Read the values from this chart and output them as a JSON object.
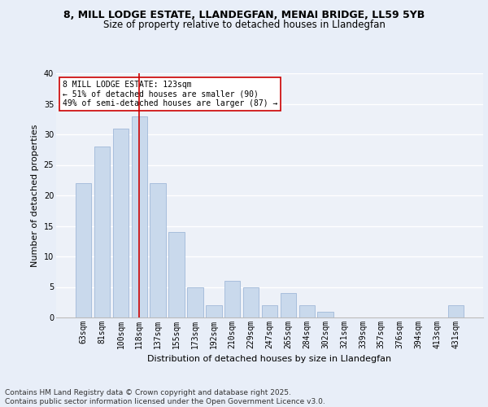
{
  "title1": "8, MILL LODGE ESTATE, LLANDEGFAN, MENAI BRIDGE, LL59 5YB",
  "title2": "Size of property relative to detached houses in Llandegfan",
  "xlabel": "Distribution of detached houses by size in Llandegfan",
  "ylabel": "Number of detached properties",
  "categories": [
    "63sqm",
    "81sqm",
    "100sqm",
    "118sqm",
    "137sqm",
    "155sqm",
    "173sqm",
    "192sqm",
    "210sqm",
    "229sqm",
    "247sqm",
    "265sqm",
    "284sqm",
    "302sqm",
    "321sqm",
    "339sqm",
    "357sqm",
    "376sqm",
    "394sqm",
    "413sqm",
    "431sqm"
  ],
  "values": [
    22,
    28,
    31,
    33,
    22,
    14,
    5,
    2,
    6,
    5,
    2,
    4,
    2,
    1,
    0,
    0,
    0,
    0,
    0,
    0,
    2
  ],
  "bar_color": "#c9d9ec",
  "bar_edge_color": "#a0b8d8",
  "highlight_bar_index": 3,
  "highlight_line_color": "#cc0000",
  "annotation_text": "8 MILL LODGE ESTATE: 123sqm\n← 51% of detached houses are smaller (90)\n49% of semi-detached houses are larger (87) →",
  "annotation_box_color": "#ffffff",
  "annotation_box_edge_color": "#cc0000",
  "ylim": [
    0,
    40
  ],
  "yticks": [
    0,
    5,
    10,
    15,
    20,
    25,
    30,
    35,
    40
  ],
  "footnote": "Contains HM Land Registry data © Crown copyright and database right 2025.\nContains public sector information licensed under the Open Government Licence v3.0.",
  "bg_color": "#e8eef8",
  "plot_bg_color": "#edf1f8",
  "grid_color": "#ffffff",
  "title_fontsize": 9,
  "subtitle_fontsize": 8.5,
  "axis_label_fontsize": 8,
  "tick_fontsize": 7,
  "annotation_fontsize": 7,
  "footnote_fontsize": 6.5
}
